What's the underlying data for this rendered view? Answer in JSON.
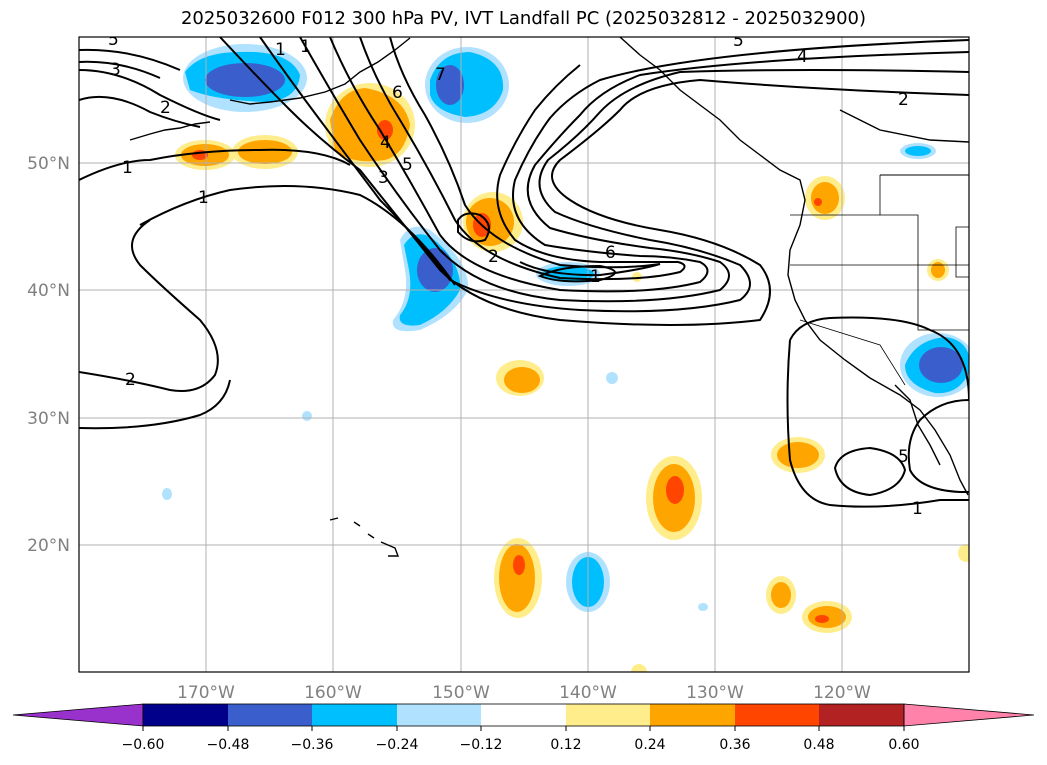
{
  "title": "2025032600 F012 300 hPa PV, IVT Landfall PC (2025032812 - 2025032900)",
  "lon_labels": [
    "170°W",
    "160°W",
    "150°W",
    "140°W",
    "130°W",
    "120°W"
  ],
  "lat_labels": [
    "50°N",
    "40°N",
    "30°N",
    "20°N"
  ],
  "colorbar": {
    "ticks": [
      "−0.60",
      "−0.48",
      "−0.36",
      "−0.24",
      "−0.12",
      "0.12",
      "0.24",
      "0.36",
      "0.48",
      "0.60"
    ],
    "colors": [
      "#9932cc",
      "#00008b",
      "#3a5fcd",
      "#00bfff",
      "#b0e2ff",
      "#ffffff",
      "#ffec8b",
      "#ffa500",
      "#ff4500",
      "#b22222",
      "#ff82ab"
    ]
  },
  "contour_labels": [
    "5",
    "3",
    "2",
    "1",
    "1",
    "2",
    "1",
    "3",
    "4",
    "5",
    "6",
    "7",
    "1",
    "2",
    "1",
    "6",
    "5",
    "4",
    "2",
    "5",
    "1"
  ],
  "colors": {
    "positive": "#ffa500",
    "negative": "#00bfff",
    "grid": "#b0b0b0"
  }
}
